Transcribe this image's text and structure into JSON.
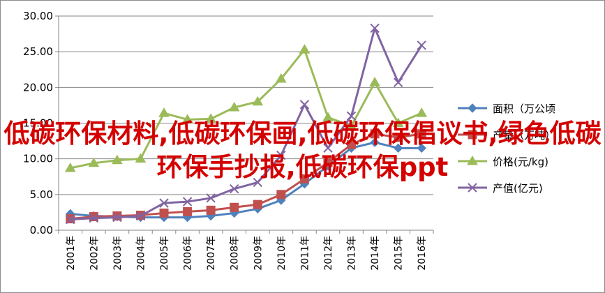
{
  "overlay_text": "低碳环保材料,低碳环保画,低碳环保倡议书,绿色低碳环保手抄报,低碳环保ppt",
  "chart_data": {
    "type": "line",
    "title": "",
    "xlabel": "",
    "ylabel": "",
    "categories": [
      "2001年",
      "2002年",
      "2003年",
      "2004年",
      "2005年",
      "2006年",
      "2007年",
      "2008年",
      "2009年",
      "2010年",
      "2011年",
      "2012年",
      "2013年",
      "2014年",
      "2015年",
      "2016年"
    ],
    "ylim": [
      0,
      30
    ],
    "yticks": [
      "0.00",
      "5.00",
      "10.00",
      "15.00",
      "20.00",
      "25.00",
      "30.00"
    ],
    "grid": true,
    "legend_position": "right",
    "series": [
      {
        "name": "面积（万公顷",
        "color": "#4f81bd",
        "marker": "diamond",
        "values": [
          2.3,
          2.0,
          1.9,
          1.8,
          1.8,
          1.8,
          2.0,
          2.4,
          3.0,
          4.2,
          6.5,
          9.0,
          11.5,
          12.3,
          11.5,
          11.5
        ]
      },
      {
        "name": "产量（万吨）",
        "color": "#c0504d",
        "marker": "square",
        "values": [
          1.6,
          1.9,
          2.0,
          2.1,
          2.4,
          2.6,
          2.8,
          3.2,
          3.6,
          5.0,
          7.2,
          9.5,
          12.0,
          13.5,
          13.0,
          13.5
        ]
      },
      {
        "name": "价格(元/kg)",
        "color": "#9bbb59",
        "marker": "triangle",
        "values": [
          8.7,
          9.4,
          9.8,
          10.0,
          16.4,
          15.5,
          15.6,
          17.2,
          18.0,
          21.2,
          25.3,
          15.8,
          14.6,
          20.7,
          15.0,
          16.4
        ]
      },
      {
        "name": "产值(亿元)",
        "color": "#8064a2",
        "marker": "x",
        "values": [
          1.5,
          1.7,
          1.8,
          2.0,
          3.8,
          4.0,
          4.5,
          5.8,
          6.7,
          10.5,
          17.6,
          11.5,
          16.0,
          28.3,
          20.7,
          25.9
        ]
      }
    ]
  }
}
